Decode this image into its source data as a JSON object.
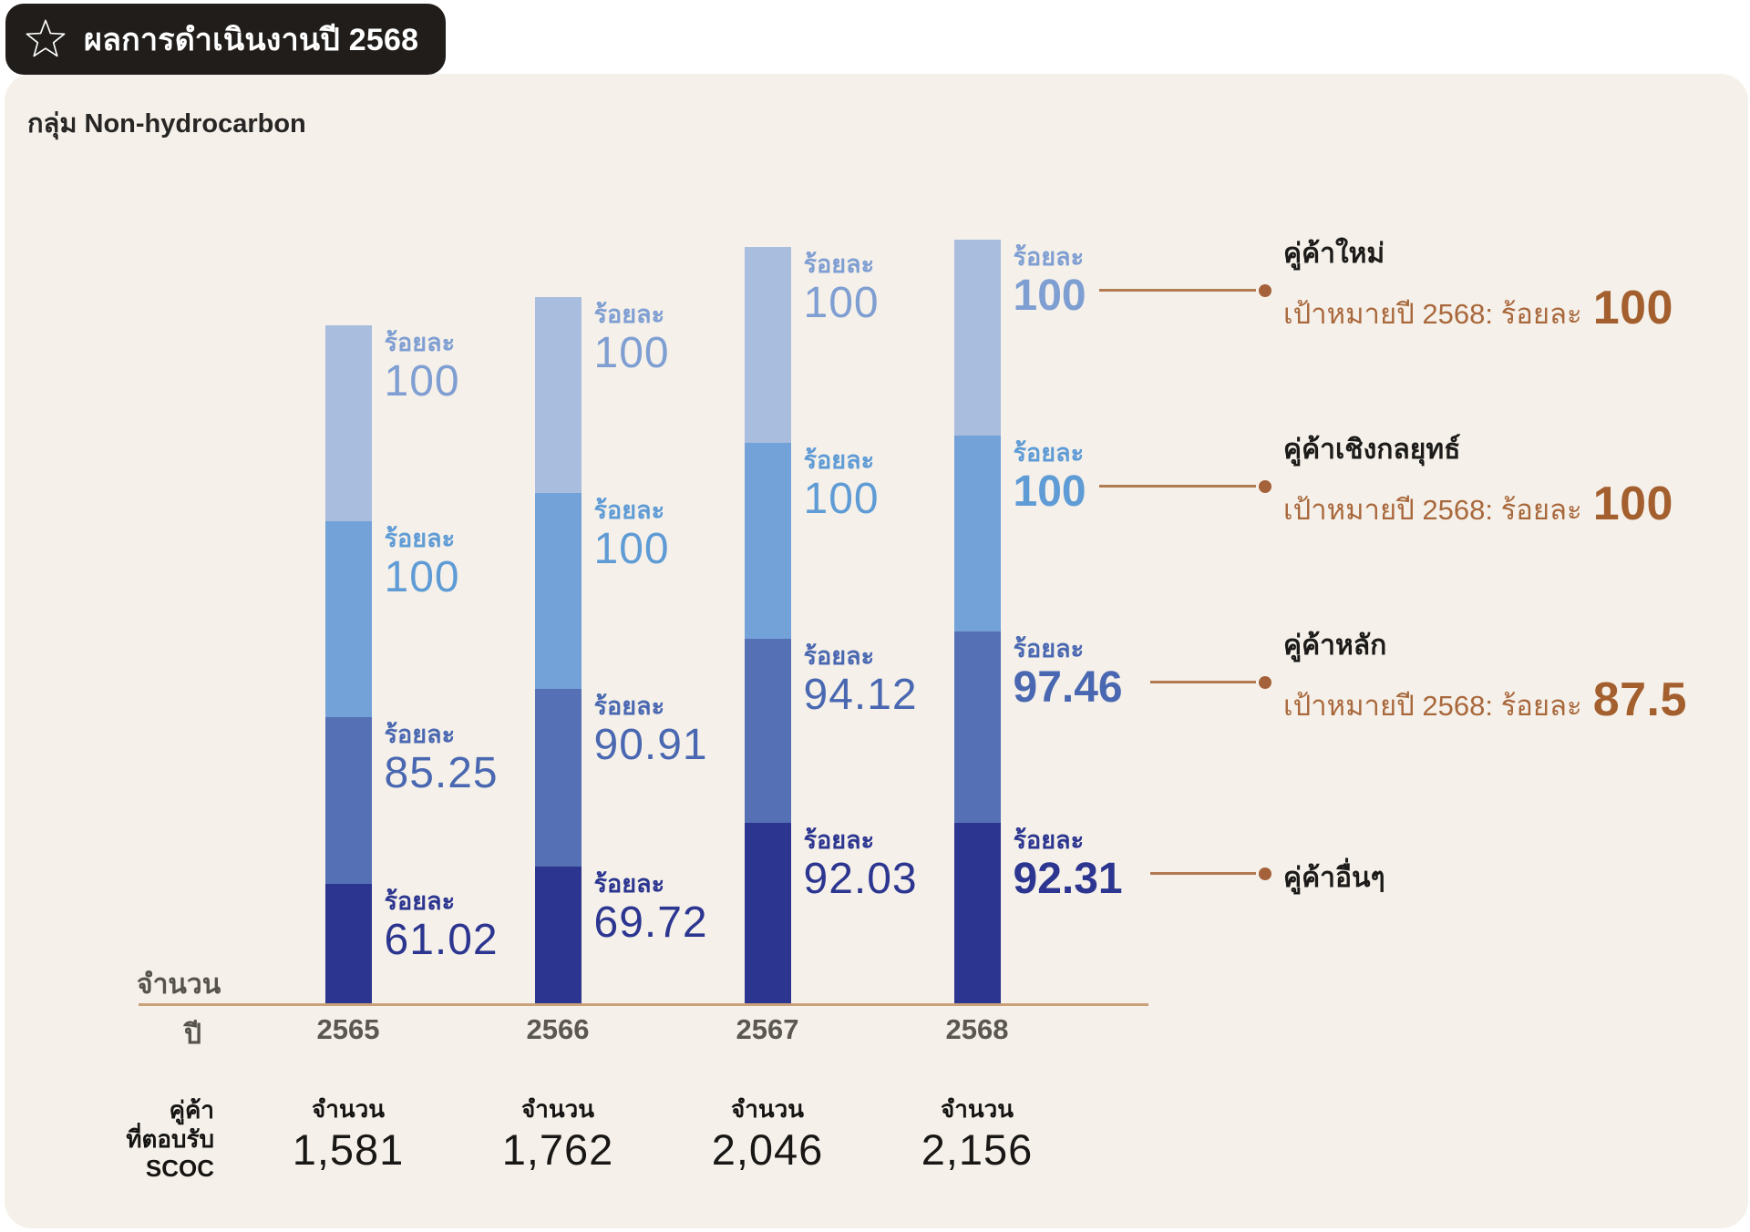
{
  "header": {
    "title": "ผลการดำเนินงานปี 2568"
  },
  "subtitle": "กลุ่ม Non-hydrocarbon",
  "chart_data": {
    "type": "bar",
    "stacked": true,
    "title": "กลุ่ม Non-hydrocarbon",
    "unit_prefix_label": "ร้อยละ",
    "xlabel": "ปี",
    "ylabel": "จำนวน",
    "categories": [
      "2565",
      "2566",
      "2567",
      "2568"
    ],
    "highlight_category": "2568",
    "series": [
      {
        "name": "คู่ค้าใหม่",
        "values": [
          100,
          100,
          100,
          100
        ],
        "color": "#a9bdde",
        "label_color": "#7f9ed2"
      },
      {
        "name": "คู่ค้าเชิงกลยุทธ์",
        "values": [
          100,
          100,
          100,
          100
        ],
        "color": "#73a2d8",
        "label_color": "#5f9bd5"
      },
      {
        "name": "คู่ค้าหลัก",
        "values": [
          85.25,
          90.91,
          94.12,
          97.46
        ],
        "color": "#5570b4",
        "label_color": "#4a68b1"
      },
      {
        "name": "คู่ค้าอื่นๆ",
        "values": [
          61.02,
          69.72,
          92.03,
          92.31
        ],
        "color": "#2c3590",
        "label_color": "#2c3590"
      }
    ],
    "legend": [
      {
        "title": "คู่ค้าใหม่",
        "target_text": "เป้าหมายปี 2568: ร้อยละ",
        "target_value": "100"
      },
      {
        "title": "คู่ค้าเชิงกลยุทธ์",
        "target_text": "เป้าหมายปี 2568: ร้อยละ",
        "target_value": "100"
      },
      {
        "title": "คู่ค้าหลัก",
        "target_text": "เป้าหมายปี 2568: ร้อยละ",
        "target_value": "87.5"
      },
      {
        "title": "คู่ค้าอื่นๆ",
        "target_text": "",
        "target_value": ""
      }
    ],
    "footer": {
      "row_label_lines": [
        "คู่ค้า",
        "ที่ตอบรับ",
        "SCOC"
      ],
      "count_label": "จำนวน",
      "counts": [
        "1,581",
        "1,762",
        "2,046",
        "2,156"
      ]
    },
    "colors": {
      "card_background": "#f5f1ea",
      "badge_background": "#201d1a",
      "axis_line": "#c9a078",
      "target_text": "#a9683c",
      "target_value": "#a45f2e",
      "connector": "#b17a51"
    }
  }
}
